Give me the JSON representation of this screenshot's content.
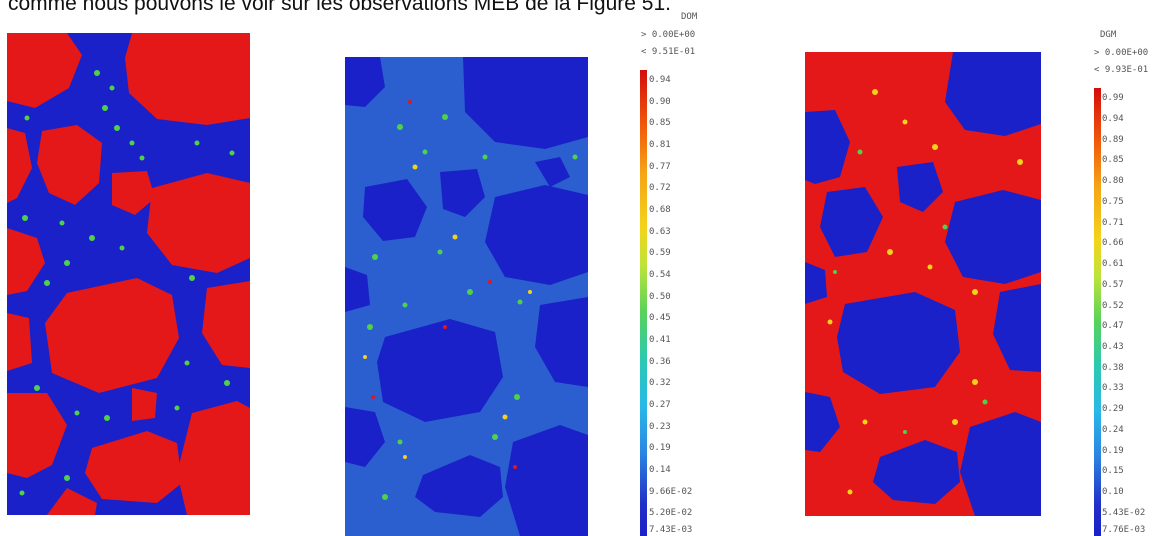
{
  "caption": "comme nous pouvons le voir sur les observations MEB de la Figure 51.",
  "panels": [
    {
      "id": "left",
      "type": "mesostructure"
    },
    {
      "id": "middle",
      "type": "damage-field",
      "variable": "DOM",
      "max_label": "> 0.00E+00",
      "min_label": "< 9.51E-01",
      "ticks": [
        "0.94",
        "0.90",
        "0.85",
        "0.81",
        "0.77",
        "0.72",
        "0.68",
        "0.63",
        "0.59",
        "0.54",
        "0.50",
        "0.45",
        "0.41",
        "0.36",
        "0.32",
        "0.27",
        "0.23",
        "0.19",
        "0.14",
        "9.66E-02",
        "5.20E-02",
        "7.43E-03"
      ]
    },
    {
      "id": "right",
      "type": "damage-field",
      "variable": "DGM",
      "max_label": "> 0.00E+00",
      "min_label": "< 9.93E-01",
      "ticks": [
        "0.99",
        "0.94",
        "0.89",
        "0.85",
        "0.80",
        "0.75",
        "0.71",
        "0.66",
        "0.61",
        "0.57",
        "0.52",
        "0.47",
        "0.43",
        "0.38",
        "0.33",
        "0.29",
        "0.24",
        "0.19",
        "0.15",
        "0.10",
        "5.43E-02",
        "7.76E-03"
      ]
    }
  ],
  "colors": {
    "aggregate": "#e41818",
    "matrix": "#1a21c8",
    "medium": "#4fd24a",
    "high": "#f2d21a"
  }
}
